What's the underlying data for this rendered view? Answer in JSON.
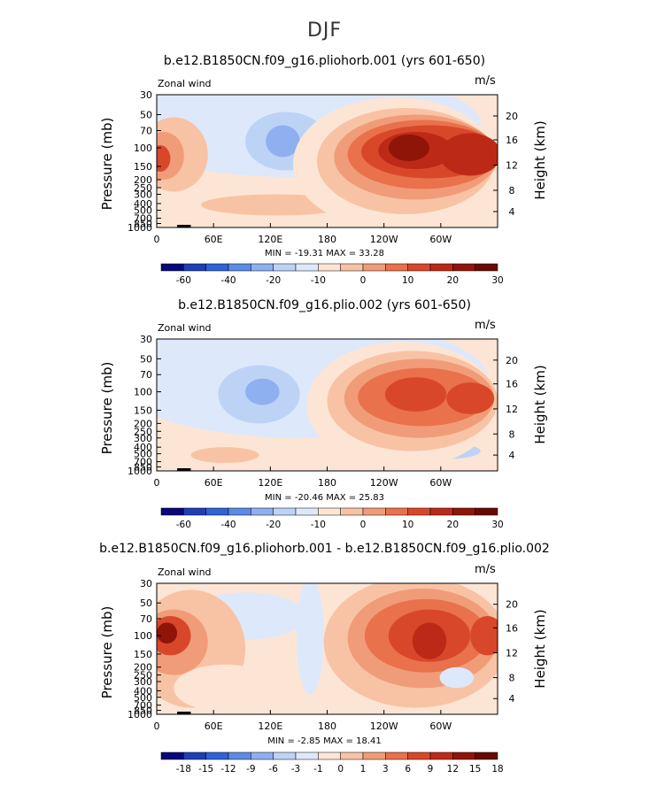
{
  "figure": {
    "title": "DJF"
  },
  "colors": {
    "cb_main": [
      "#08087a",
      "#1f3fb4",
      "#2f63d6",
      "#5b8be6",
      "#8eb0f0",
      "#bdd3f6",
      "#dde8fb",
      "#fde5d5",
      "#f8c3a4",
      "#f19c78",
      "#e9714c",
      "#d9472b",
      "#bc2a17",
      "#8f1508",
      "#6a0a04"
    ],
    "cb_diff": [
      "#08087a",
      "#1f3fb4",
      "#2f63d6",
      "#5b8be6",
      "#8eb0f0",
      "#bdd3f6",
      "#dde8fb",
      "#fde5d5",
      "#f8c3a4",
      "#f19c78",
      "#e9714c",
      "#d9472b",
      "#bc2a17",
      "#8f1508",
      "#6a0a04"
    ]
  },
  "chart_data": [
    {
      "type": "heatmap",
      "title": "b.e12.B1850CN.f09_g16.pliohorb.001 (yrs 601-650)",
      "left_label": "Zonal wind",
      "right_label": "m/s",
      "ylabel": "Pressure (mb)",
      "y2label": "Height (km)",
      "x_ticks": [
        "0",
        "60E",
        "120E",
        "180",
        "120W",
        "60W"
      ],
      "y_ticks": [
        "30",
        "50",
        "70",
        "100",
        "150",
        "200",
        "250",
        "300",
        "400",
        "500",
        "700",
        "850",
        "1000"
      ],
      "y2_ticks": [
        "20",
        "16",
        "12",
        "8",
        "4"
      ],
      "stats": "MIN = -19.31   MAX = 33.28",
      "colorbar_labels": [
        "-60",
        "-40",
        "-20",
        "-10",
        "0",
        "10",
        "20",
        "30"
      ],
      "min": -19.31,
      "max": 33.28
    },
    {
      "type": "heatmap",
      "title": "b.e12.B1850CN.f09_g16.plio.002 (yrs 601-650)",
      "left_label": "Zonal wind",
      "right_label": "m/s",
      "ylabel": "Pressure (mb)",
      "y2label": "Height (km)",
      "x_ticks": [
        "0",
        "60E",
        "120E",
        "180",
        "120W",
        "60W"
      ],
      "y_ticks": [
        "30",
        "50",
        "70",
        "100",
        "150",
        "200",
        "250",
        "300",
        "400",
        "500",
        "700",
        "850",
        "1000"
      ],
      "y2_ticks": [
        "20",
        "16",
        "12",
        "8",
        "4"
      ],
      "stats": "MIN = -20.46   MAX = 25.83",
      "colorbar_labels": [
        "-60",
        "-40",
        "-20",
        "-10",
        "0",
        "10",
        "20",
        "30"
      ],
      "min": -20.46,
      "max": 25.83
    },
    {
      "type": "heatmap",
      "title": "b.e12.B1850CN.f09_g16.pliohorb.001 - b.e12.B1850CN.f09_g16.plio.002",
      "left_label": "Zonal wind",
      "right_label": "m/s",
      "ylabel": "Pressure (mb)",
      "y2label": "Height (km)",
      "x_ticks": [
        "0",
        "60E",
        "120E",
        "180",
        "120W",
        "60W"
      ],
      "y_ticks": [
        "30",
        "50",
        "70",
        "100",
        "150",
        "200",
        "250",
        "300",
        "400",
        "500",
        "700",
        "850",
        "1000"
      ],
      "y2_ticks": [
        "20",
        "16",
        "12",
        "8",
        "4"
      ],
      "stats": "MIN = -2.85   MAX = 18.41",
      "colorbar_labels": [
        "-18",
        "-15",
        "-12",
        "-9",
        "-6",
        "-3",
        "-1",
        "0",
        "1",
        "3",
        "6",
        "9",
        "12",
        "15",
        "18"
      ],
      "min": -2.85,
      "max": 18.41
    }
  ]
}
